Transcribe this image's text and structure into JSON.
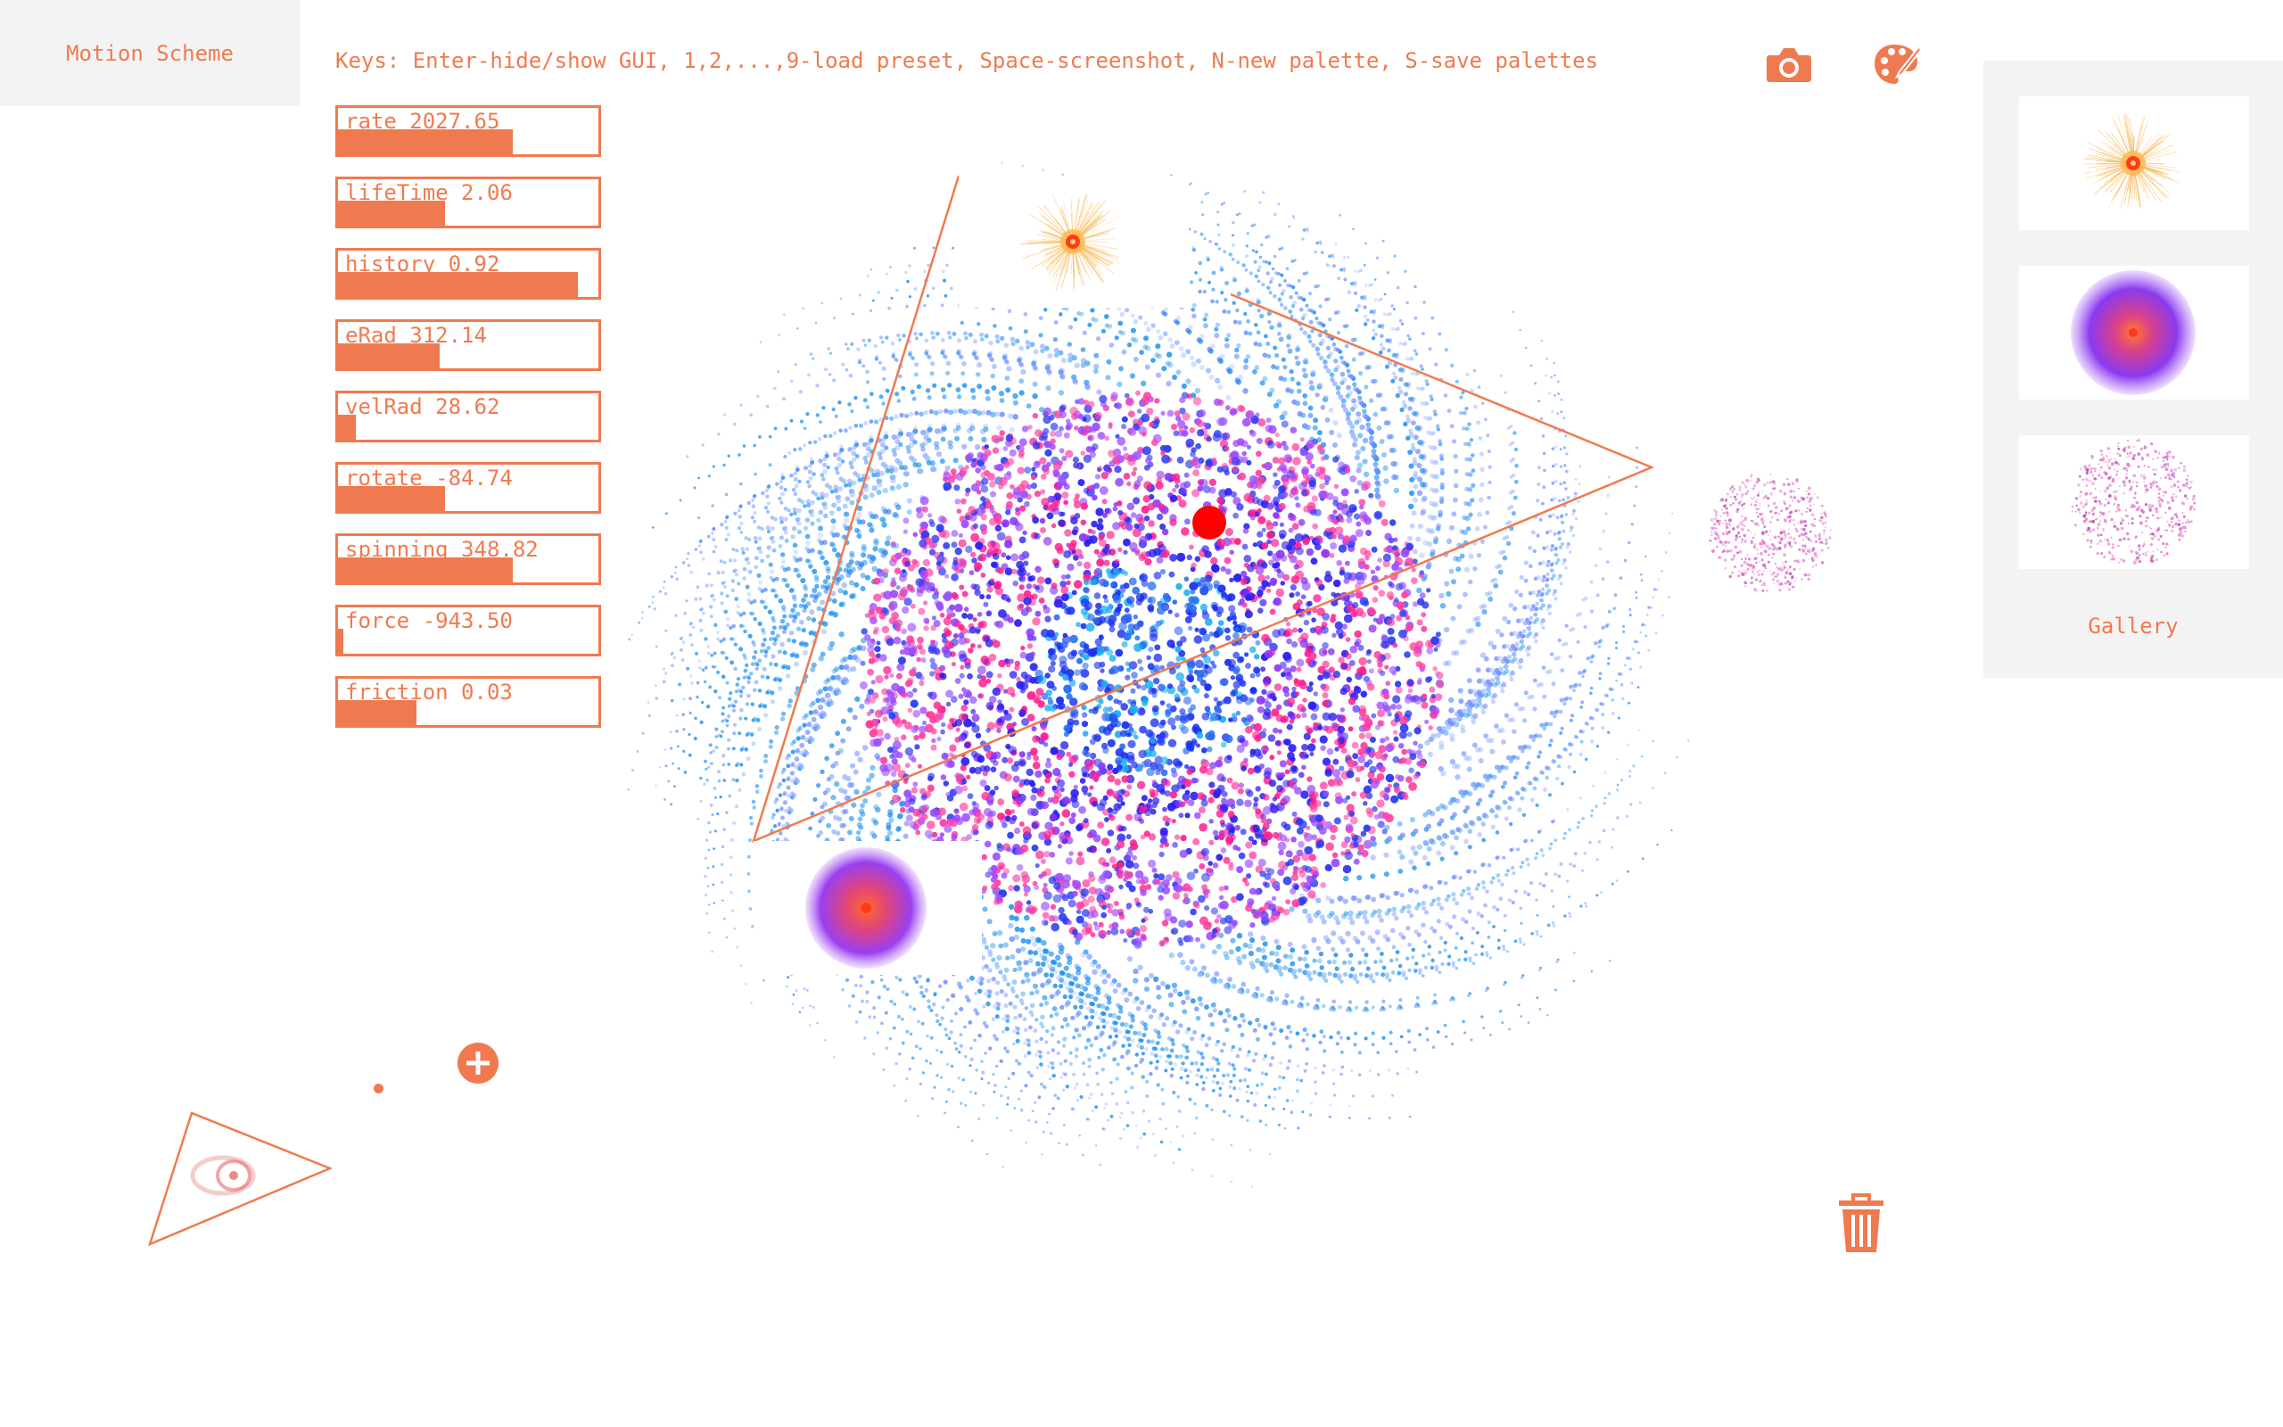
{
  "header": {
    "title": "Motion Scheme",
    "keys_hint": "Keys: Enter-hide/show GUI, 1,2,...,9-load preset, Space-screenshot, N-new palette, S-save palettes"
  },
  "toolbar": {
    "camera_icon": "camera-icon",
    "palette_icon": "palette-icon",
    "trash_icon": "trash-icon",
    "add_icon": "plus-circle-icon"
  },
  "sliders": [
    {
      "label": "rate 2027.65",
      "fraction": 0.67
    },
    {
      "label": "lifeTime 2.06",
      "fraction": 0.41
    },
    {
      "label": "history 0.92",
      "fraction": 0.92
    },
    {
      "label": "eRad 312.14",
      "fraction": 0.39
    },
    {
      "label": "velRad 28.62",
      "fraction": 0.07
    },
    {
      "label": "rotate -84.74",
      "fraction": 0.41
    },
    {
      "label": "spinning 348.82",
      "fraction": 0.67
    },
    {
      "label": "force -943.50",
      "fraction": 0.02
    },
    {
      "label": "friction 0.03",
      "fraction": 0.3
    }
  ],
  "gallery": {
    "label": "Gallery",
    "items": [
      "orange-burst-preview",
      "purple-disc-preview",
      "pink-dust-preview"
    ]
  },
  "colors": {
    "accent": "#f07a4f",
    "panel_bg": "#f3f3f3",
    "particles": [
      "#0a1ef0",
      "#7b2ff7",
      "#ff1f8e",
      "#1ab0f0",
      "#6fa0ff",
      "#9c5cff"
    ],
    "marker": "#ff0000"
  }
}
